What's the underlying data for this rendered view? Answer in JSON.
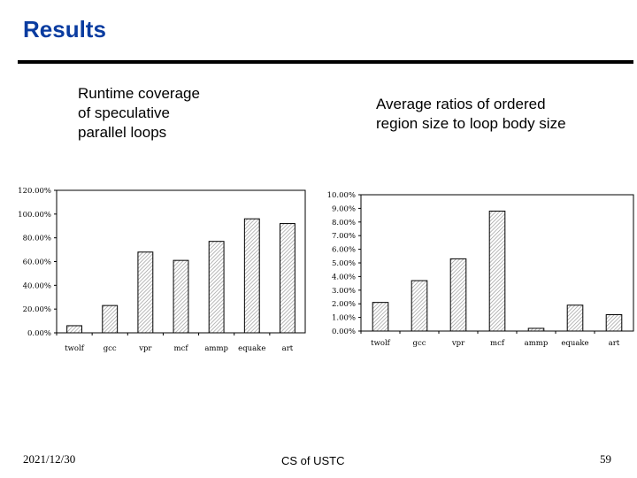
{
  "slide": {
    "title": "Results",
    "caption_left": "Runtime coverage\nof speculative\nparallel loops",
    "caption_right": "Average ratios of ordered\nregion size to loop body size",
    "footer_date": "2021/12/30",
    "footer_center": "CS of USTC",
    "footer_page": "59"
  },
  "colors": {
    "title": "#0a3ca0",
    "bar_stroke": "#000000",
    "bar_hatch": "#9a9a9a"
  },
  "chart_data": [
    {
      "type": "bar",
      "title": "",
      "categories": [
        "twolf",
        "gcc",
        "vpr",
        "mcf",
        "ammp",
        "equake",
        "art"
      ],
      "values": [
        6,
        23,
        68,
        61,
        77,
        96,
        92
      ],
      "value_unit": "%",
      "ylim": [
        0,
        120
      ],
      "yticks": [
        "0.00%",
        "20.00%",
        "40.00%",
        "60.00%",
        "80.00%",
        "100.00%",
        "120.00%"
      ],
      "grid": false
    },
    {
      "type": "bar",
      "title": "",
      "categories": [
        "twolf",
        "gcc",
        "vpr",
        "mcf",
        "ammp",
        "equake",
        "art"
      ],
      "values": [
        2.1,
        3.7,
        5.3,
        8.8,
        0.2,
        1.9,
        1.2
      ],
      "value_unit": "%",
      "ylim": [
        0,
        10
      ],
      "yticks": [
        "0.00%",
        "1.00%",
        "2.00%",
        "3.00%",
        "4.00%",
        "5.00%",
        "6.00%",
        "7.00%",
        "8.00%",
        "9.00%",
        "10.00%"
      ],
      "grid": false
    }
  ]
}
